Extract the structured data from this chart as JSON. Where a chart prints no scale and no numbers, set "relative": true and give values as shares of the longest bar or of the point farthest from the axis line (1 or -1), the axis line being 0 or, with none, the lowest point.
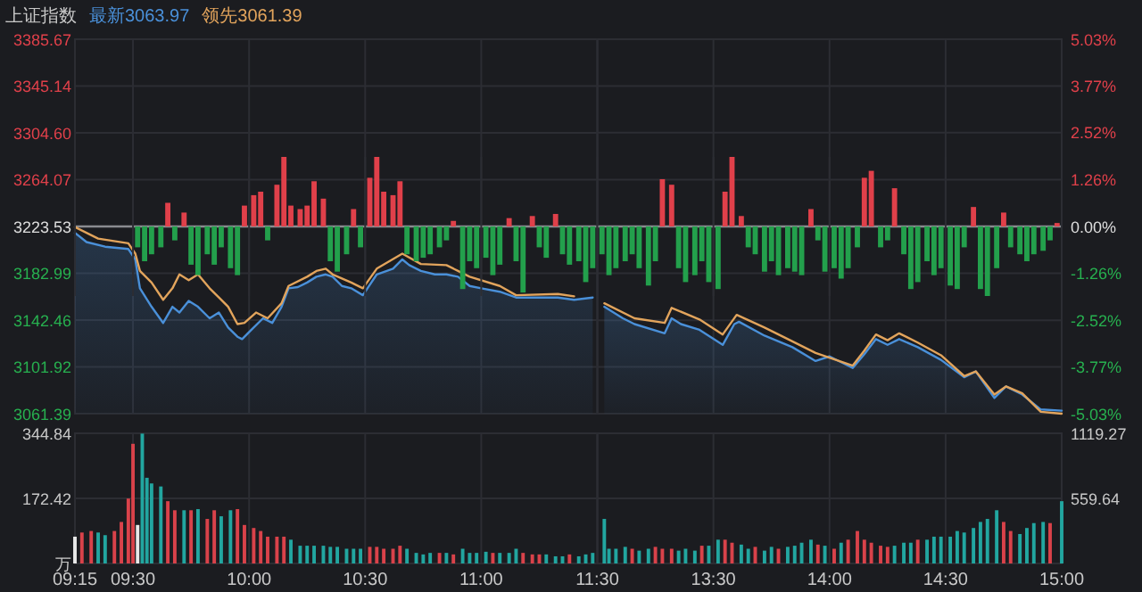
{
  "chart_data": [
    {
      "type": "line",
      "title": "上证指数",
      "legend": "top left",
      "grid": true,
      "tick_labels": "y",
      "xlim": [
        9.25,
        11.5
      ],
      "xticks": [
        {
          "value": 9.25,
          "label": null
        },
        {
          "value": 9.5,
          "label": null
        },
        {
          "value": 10,
          "label": null
        },
        {
          "value": 10.5,
          "label": null
        },
        {
          "value": 11,
          "label": null
        },
        {
          "value": 11.5,
          "label": null
        }
      ],
      "ylim": [
        3061.39,
        3385.67
      ],
      "yticks": [
        3061.39,
        3101.92,
        3142.46,
        3182.99,
        3223.53,
        3264.07,
        {
          "value": 3304.6,
          "label": "3304.60"
        },
        3345.14,
        3385.67
      ],
      "ref_lines": [
        {
          "axis": "y",
          "value": 3223.53,
          "color": "#8a8b90"
        }
      ],
      "series": [
        {
          "name": "最新3063.97",
          "type": "area",
          "color": "#4a90d9",
          "x": [
            9.25,
            9.3,
            9.38,
            9.48,
            9.51,
            9.53,
            9.58,
            9.63,
            9.67,
            9.7,
            9.74,
            9.78,
            9.83,
            9.87,
            9.91,
            9.95,
            9.97,
            10.01,
            10.06,
            10.1,
            10.14,
            10.17,
            10.21,
            10.25,
            10.29,
            10.33,
            10.36,
            10.4,
            10.44,
            10.49,
            10.55,
            10.62,
            10.66,
            10.69,
            10.74,
            10.8,
            10.85,
            10.9,
            10.95,
            11.0,
            11.08,
            11.15,
            11.23,
            11.33,
            11.4,
            11.48
          ],
          "values": [
            3218,
            3210,
            3206,
            3204,
            3195,
            3170,
            3154,
            3140,
            3154,
            3149,
            3159,
            3154,
            3144,
            3149,
            3136,
            3128,
            3126,
            3134,
            3144,
            3140,
            3154,
            3170,
            3171,
            3175,
            3180,
            3182,
            3180,
            3172,
            3170,
            3164,
            3182,
            3187,
            3195,
            3190,
            3185,
            3182,
            3182,
            3180,
            3172,
            3170,
            3167,
            3162,
            3162,
            3162,
            3160,
            3162
          ]
        },
        {
          "name": "领先3061.39",
          "color": "#e2a45c",
          "x": [
            9.25,
            9.35,
            9.48,
            9.51,
            9.53,
            9.58,
            9.63,
            9.67,
            9.7,
            9.74,
            9.78,
            9.83,
            9.87,
            9.91,
            9.95,
            9.98,
            10.03,
            10.08,
            10.14,
            10.17,
            10.25,
            10.29,
            10.33,
            10.36,
            10.44,
            10.49,
            10.55,
            10.66,
            10.74,
            10.85,
            10.9,
            10.95,
            11.08,
            11.15,
            11.33,
            11.4
          ],
          "values": [
            3223,
            3213,
            3209,
            3200,
            3185,
            3175,
            3160,
            3170,
            3182,
            3177,
            3182,
            3170,
            3162,
            3154,
            3139,
            3140,
            3149,
            3144,
            3157,
            3172,
            3180,
            3185,
            3187,
            3182,
            3175,
            3170,
            3187,
            3200,
            3191,
            3190,
            3185,
            3180,
            3172,
            3164,
            3165,
            3163
          ]
        }
      ]
    },
    {
      "type": "line",
      "grid": true,
      "tick_labels": "y",
      "xlim": [
        13,
        15
      ],
      "xticks": [
        {
          "value": 13.5,
          "label": null
        },
        {
          "value": 14,
          "label": null
        },
        {
          "value": 14.5,
          "label": null
        },
        {
          "value": 15,
          "label": null
        }
      ],
      "ylim": [
        3061.39,
        3385.67
      ],
      "y2lim": [
        -5.03,
        5.03
      ],
      "y2ticks": [
        {
          "value": -5.03,
          "label": "-5.03%"
        },
        {
          "value": -3.77,
          "label": "-3.77%"
        },
        {
          "value": -2.52,
          "label": "-2.52%"
        },
        {
          "value": -1.26,
          "label": "-1.26%"
        },
        {
          "value": 0,
          "label": "0.00%"
        },
        {
          "value": 1.26,
          "label": "1.26%"
        },
        {
          "value": 2.52,
          "label": "2.52%"
        },
        {
          "value": 3.77,
          "label": "3.77%"
        },
        {
          "value": 5.03,
          "label": "5.03%"
        }
      ],
      "ref_lines": [
        {
          "axis": "y",
          "value": 3223.53,
          "color": "#8a8b90"
        }
      ],
      "series": [
        {
          "type": "area",
          "color": "#4a90d9",
          "x": [
            13.03,
            13.11,
            13.16,
            13.29,
            13.32,
            13.36,
            13.44,
            13.54,
            13.59,
            13.61,
            13.72,
            13.84,
            13.94,
            14.0,
            14.1,
            14.15,
            14.2,
            14.25,
            14.3,
            14.38,
            14.48,
            14.58,
            14.63,
            14.71,
            14.76,
            14.83,
            14.91,
            15.0
          ],
          "values": [
            3154,
            3144,
            3139,
            3131,
            3144,
            3139,
            3134,
            3121,
            3139,
            3141,
            3129,
            3119,
            3107,
            3111,
            3101,
            3113,
            3126,
            3121,
            3126,
            3119,
            3108,
            3093,
            3098,
            3075,
            3085,
            3078,
            3065,
            3064
          ]
        },
        {
          "color": "#e2a45c",
          "x": [
            13.03,
            13.16,
            13.29,
            13.32,
            13.44,
            13.54,
            13.6,
            13.72,
            13.84,
            13.94,
            14.1,
            14.15,
            14.2,
            14.25,
            14.3,
            14.38,
            14.48,
            14.58,
            14.63,
            14.71,
            14.76,
            14.83,
            14.91,
            15.0
          ],
          "values": [
            3157,
            3144,
            3140,
            3153,
            3143,
            3130,
            3147,
            3136,
            3124,
            3114,
            3103,
            3116,
            3130,
            3125,
            3131,
            3123,
            3112,
            3094,
            3098,
            3078,
            3085,
            3079,
            3063,
            3061.39
          ]
        }
      ]
    },
    {
      "type": "bar",
      "relative": true,
      "tick_labels": false,
      "grid": "x",
      "xlim": [
        9.25,
        11.5
      ],
      "xticks": [
        {
          "value": 9.25,
          "label": null
        },
        {
          "value": 9.5,
          "label": null
        },
        {
          "value": 10,
          "label": null
        },
        {
          "value": 10.5,
          "label": null
        },
        {
          "value": 11,
          "label": null
        },
        {
          "value": 11.5,
          "label": null
        }
      ],
      "series": [
        {
          "color": "#e0404a",
          "x": [
            9.65,
            9.72,
            9.98,
            10.02,
            10.05,
            10.12,
            10.15,
            10.18,
            10.22,
            10.25,
            10.28,
            10.32,
            10.45,
            10.52,
            10.55,
            10.58,
            10.62,
            10.65,
            10.88,
            11.12,
            11.22,
            11.32
          ],
          "values": [
            0.34,
            0.2,
            0.3,
            0.45,
            0.5,
            0.6,
            1.0,
            0.3,
            0.25,
            0.3,
            0.65,
            0.4,
            0.25,
            0.7,
            1.0,
            0.5,
            0.45,
            0.65,
            0.08,
            0.12,
            0.15,
            0.18
          ]
        },
        {
          "color": "#23a04c",
          "x": [
            9.52,
            9.55,
            9.58,
            9.62,
            9.68,
            9.75,
            9.78,
            9.82,
            9.85,
            9.88,
            9.92,
            9.95,
            10.08,
            10.35,
            10.38,
            10.42,
            10.48,
            10.68,
            10.72,
            10.75,
            10.78,
            10.82,
            10.85,
            10.92,
            10.95,
            10.98,
            11.02,
            11.05,
            11.08,
            11.15,
            11.18,
            11.25,
            11.28,
            11.35,
            11.38,
            11.42,
            11.45,
            11.48
          ],
          "values": [
            -0.3,
            -0.5,
            -0.4,
            -0.3,
            -0.2,
            -0.55,
            -0.7,
            -0.4,
            -0.55,
            -0.3,
            -0.6,
            -0.7,
            -0.2,
            -0.5,
            -0.65,
            -0.4,
            -0.3,
            -0.4,
            -0.5,
            -0.45,
            -0.4,
            -0.3,
            -0.2,
            -0.9,
            -0.5,
            -0.6,
            -0.45,
            -0.7,
            -0.55,
            -0.5,
            -0.95,
            -0.3,
            -0.45,
            -0.4,
            -0.55,
            -0.5,
            -0.8,
            -0.6
          ]
        }
      ]
    },
    {
      "type": "bar",
      "relative": true,
      "tick_labels": false,
      "grid": "x",
      "xlim": [
        13,
        15
      ],
      "xticks": [
        {
          "value": 13.5,
          "label": null
        },
        {
          "value": 14,
          "label": null
        },
        {
          "value": 14.5,
          "label": null
        },
        {
          "value": 15,
          "label": null
        }
      ],
      "series": [
        {
          "color": "#e0404a",
          "x": [
            13.28,
            13.32,
            13.55,
            13.58,
            13.62,
            13.92,
            14.15,
            14.18,
            14.28,
            14.62,
            14.75,
            14.98
          ],
          "values": [
            0.68,
            0.6,
            0.5,
            1.0,
            0.15,
            0.25,
            0.7,
            0.8,
            0.55,
            0.28,
            0.2,
            0.05
          ]
        },
        {
          "color": "#23a04c",
          "x": [
            13.02,
            13.05,
            13.08,
            13.12,
            13.15,
            13.18,
            13.22,
            13.25,
            13.35,
            13.38,
            13.42,
            13.45,
            13.48,
            13.52,
            13.65,
            13.68,
            13.72,
            13.75,
            13.78,
            13.82,
            13.85,
            13.88,
            13.95,
            13.98,
            14.02,
            14.05,
            14.08,
            14.12,
            14.22,
            14.25,
            14.32,
            14.35,
            14.38,
            14.42,
            14.45,
            14.48,
            14.52,
            14.55,
            14.58,
            14.65,
            14.68,
            14.72,
            14.78,
            14.82,
            14.85,
            14.88,
            14.92,
            14.95
          ],
          "values": [
            -0.4,
            -0.7,
            -0.6,
            -0.5,
            -0.4,
            -0.6,
            -0.85,
            -0.5,
            -0.6,
            -0.8,
            -0.7,
            -0.5,
            -0.8,
            -0.9,
            -0.3,
            -0.4,
            -0.65,
            -0.5,
            -0.7,
            -0.6,
            -0.65,
            -0.7,
            -0.2,
            -0.65,
            -0.6,
            -0.75,
            -0.6,
            -0.3,
            -0.3,
            -0.2,
            -0.4,
            -0.9,
            -0.8,
            -0.5,
            -0.7,
            -0.6,
            -0.85,
            -0.9,
            -0.3,
            -0.9,
            -1.0,
            -0.6,
            -0.3,
            -0.4,
            -0.5,
            -0.4,
            -0.35,
            -0.2
          ]
        }
      ]
    },
    {
      "type": "bar",
      "grid": true,
      "xlim": [
        9.25,
        11.5
      ],
      "xticks": [
        {
          "value": 9.25,
          "label": "09:15"
        },
        {
          "value": 9.5,
          "label": "09:30"
        },
        {
          "value": 10,
          "label": "10:00"
        },
        {
          "value": 10.5,
          "label": "10:30"
        },
        {
          "value": 11,
          "label": "11:00"
        },
        {
          "value": 11.5,
          "label": "11:30"
        }
      ],
      "ylim": [
        0,
        344.84
      ],
      "yticks": [
        {
          "value": 0,
          "label": "万"
        },
        172.42,
        344.84
      ],
      "x": [
        9.25,
        9.28,
        9.32,
        9.35,
        9.38,
        9.42,
        9.45,
        9.48,
        9.5,
        9.52,
        9.54,
        9.56,
        9.58,
        9.62,
        9.65,
        9.68,
        9.72,
        9.75,
        9.78,
        9.82,
        9.85,
        9.88,
        9.92,
        9.95,
        9.98,
        10.02,
        10.05,
        10.08,
        10.12,
        10.15,
        10.18,
        10.22,
        10.25,
        10.28,
        10.32,
        10.35,
        10.38,
        10.42,
        10.45,
        10.48,
        10.52,
        10.55,
        10.58,
        10.62,
        10.65,
        10.68,
        10.72,
        10.75,
        10.78,
        10.82,
        10.85,
        10.88,
        10.92,
        10.95,
        10.98,
        11.02,
        11.05,
        11.08,
        11.12,
        11.15,
        11.18,
        11.22,
        11.25,
        11.28,
        11.32,
        11.35,
        11.38,
        11.42,
        11.45,
        11.48
      ],
      "values": [
        71,
        82,
        86,
        82,
        75,
        86,
        110,
        172,
        317,
        102,
        344,
        227,
        212,
        204,
        165,
        141,
        141,
        141,
        144,
        118,
        141,
        125,
        141,
        144,
        102,
        94,
        86,
        71,
        71,
        71,
        63,
        47,
        47,
        47,
        47,
        44,
        44,
        39,
        39,
        39,
        44,
        44,
        39,
        39,
        47,
        39,
        28,
        24,
        28,
        28,
        28,
        24,
        39,
        28,
        28,
        31,
        28,
        28,
        28,
        39,
        28,
        24,
        24,
        24,
        19,
        19,
        24,
        19,
        24,
        28
      ],
      "colors": [
        "#e8e8e8",
        "#d9424a",
        "#d9424a",
        "#22a6a0",
        "#22a6a0",
        "#d9424a",
        "#d9424a",
        "#d9424a",
        "#d9424a",
        "#e8e8e8",
        "#22a6a0",
        "#22a6a0",
        "#22a6a0",
        "#22a6a0",
        "#d9424a",
        "#d9424a",
        "#22a6a0",
        "#d9424a",
        "#22a6a0",
        "#d9424a",
        "#d9424a",
        "#22a6a0",
        "#22a6a0",
        "#d9424a",
        "#d9424a",
        "#d9424a",
        "#d9424a",
        "#d9424a",
        "#d9424a",
        "#d9424a",
        "#22a6a0",
        "#22a6a0",
        "#22a6a0",
        "#22a6a0",
        "#22a6a0",
        "#22a6a0",
        "#22a6a0",
        "#22a6a0",
        "#22a6a0",
        "#22a6a0",
        "#d9424a",
        "#d9424a",
        "#d9424a",
        "#d9424a",
        "#d9424a",
        "#22a6a0",
        "#22a6a0",
        "#22a6a0",
        "#22a6a0",
        "#d9424a",
        "#22a6a0",
        "#d9424a",
        "#22a6a0",
        "#22a6a0",
        "#22a6a0",
        "#22a6a0",
        "#d9424a",
        "#22a6a0",
        "#22a6a0",
        "#22a6a0",
        "#d9424a",
        "#d9424a",
        "#d9424a",
        "#22a6a0",
        "#22a6a0",
        "#22a6a0",
        "#d9424a",
        "#22a6a0",
        "#22a6a0",
        "#22a6a0"
      ]
    },
    {
      "type": "bar",
      "grid": true,
      "xlim": [
        13,
        15
      ],
      "xticks": [
        {
          "value": 13.5,
          "label": "13:30"
        },
        {
          "value": 14,
          "label": "14:00"
        },
        {
          "value": 14.5,
          "label": "14:30"
        },
        {
          "value": 15,
          "label": "15:00"
        }
      ],
      "ylim": [
        0,
        344.84
      ],
      "y2lim": [
        0,
        1119.27
      ],
      "y2ticks": [
        559.64,
        1119.27
      ],
      "x": [
        13.03,
        13.05,
        13.08,
        13.12,
        13.15,
        13.18,
        13.22,
        13.25,
        13.28,
        13.32,
        13.35,
        13.38,
        13.42,
        13.45,
        13.48,
        13.52,
        13.55,
        13.58,
        13.62,
        13.65,
        13.68,
        13.72,
        13.75,
        13.78,
        13.82,
        13.85,
        13.88,
        13.92,
        13.95,
        13.98,
        14.02,
        14.05,
        14.08,
        14.12,
        14.15,
        14.18,
        14.22,
        14.25,
        14.28,
        14.32,
        14.35,
        14.38,
        14.42,
        14.45,
        14.48,
        14.52,
        14.55,
        14.58,
        14.62,
        14.65,
        14.68,
        14.72,
        14.75,
        14.78,
        14.82,
        14.85,
        14.88,
        14.92,
        14.95,
        15.0
      ],
      "values": [
        118,
        39,
        39,
        44,
        39,
        34,
        39,
        44,
        39,
        39,
        34,
        39,
        34,
        47,
        47,
        63,
        63,
        55,
        50,
        39,
        44,
        34,
        44,
        39,
        44,
        47,
        55,
        63,
        50,
        47,
        39,
        55,
        63,
        86,
        63,
        55,
        47,
        44,
        47,
        55,
        55,
        63,
        63,
        71,
        71,
        71,
        86,
        82,
        94,
        110,
        118,
        141,
        110,
        86,
        78,
        94,
        107,
        110,
        107,
        165
      ],
      "colors": [
        "#22a6a0",
        "#22a6a0",
        "#22a6a0",
        "#22a6a0",
        "#d9424a",
        "#22a6a0",
        "#22a6a0",
        "#d9424a",
        "#d9424a",
        "#d9424a",
        "#22a6a0",
        "#22a6a0",
        "#22a6a0",
        "#d9424a",
        "#22a6a0",
        "#22a6a0",
        "#d9424a",
        "#d9424a",
        "#22a6a0",
        "#22a6a0",
        "#d9424a",
        "#22a6a0",
        "#22a6a0",
        "#d9424a",
        "#22a6a0",
        "#22a6a0",
        "#22a6a0",
        "#22a6a0",
        "#d9424a",
        "#22a6a0",
        "#d9424a",
        "#22a6a0",
        "#d9424a",
        "#d9424a",
        "#d9424a",
        "#d9424a",
        "#d9424a",
        "#d9424a",
        "#22a6a0",
        "#22a6a0",
        "#22a6a0",
        "#d9424a",
        "#22a6a0",
        "#22a6a0",
        "#22a6a0",
        "#22a6a0",
        "#22a6a0",
        "#22a6a0",
        "#22a6a0",
        "#22a6a0",
        "#22a6a0",
        "#22a6a0",
        "#d9424a",
        "#d9424a",
        "#22a6a0",
        "#22a6a0",
        "#22a6a0",
        "#22a6a0",
        "#d9424a",
        "#22a6a0"
      ]
    }
  ]
}
